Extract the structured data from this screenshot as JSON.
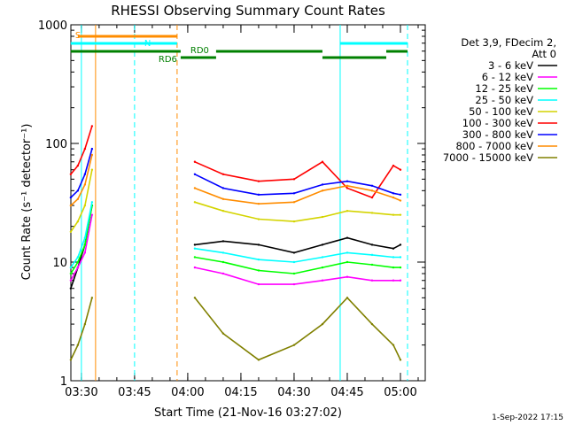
{
  "chart_data": {
    "type": "line",
    "title": "RHESSI Observing Summary Count Rates",
    "xlabel": "Start Time (21-Nov-16 03:27:02)",
    "ylabel": "Count Rate (s⁻¹ detector⁻¹)",
    "y_scale": "log",
    "xlim": [
      "03:27:02",
      "05:07:00"
    ],
    "ylim": [
      1,
      1000
    ],
    "x_tick_labels": [
      "03:30",
      "03:45",
      "04:00",
      "04:15",
      "04:30",
      "04:45",
      "05:00"
    ],
    "y_tick_labels": [
      "1",
      "10",
      "100",
      "1000"
    ],
    "legend_header": [
      "Det 3,9, FDecim 2,",
      "Att 0"
    ],
    "legend_position": "right",
    "series": [
      {
        "name": "3 - 6 keV",
        "color": "#000000",
        "x": [
          "03:27",
          "03:29",
          "03:31",
          "03:33",
          "04:02",
          "04:10",
          "04:20",
          "04:30",
          "04:38",
          "04:45",
          "04:52",
          "04:58",
          "05:00"
        ],
        "y": [
          6,
          9,
          14,
          30,
          14,
          15,
          14,
          12,
          14,
          16,
          14,
          13,
          14
        ]
      },
      {
        "name": "6 - 12 keV",
        "color": "#ff00ff",
        "x": [
          "03:27",
          "03:29",
          "03:31",
          "03:33",
          "04:02",
          "04:10",
          "04:20",
          "04:30",
          "04:38",
          "04:45",
          "04:52",
          "04:58",
          "05:00"
        ],
        "y": [
          7,
          9,
          12,
          25,
          9,
          8,
          6.5,
          6.5,
          7,
          7.5,
          7,
          7,
          7
        ]
      },
      {
        "name": "12 - 25 keV",
        "color": "#00ff00",
        "x": [
          "03:27",
          "03:29",
          "03:31",
          "03:33",
          "04:02",
          "04:10",
          "04:20",
          "04:30",
          "04:38",
          "04:45",
          "04:52",
          "04:58",
          "05:00"
        ],
        "y": [
          8,
          10,
          14,
          30,
          11,
          10,
          8.5,
          8,
          9,
          10,
          9.5,
          9,
          9
        ]
      },
      {
        "name": "25 - 50 keV",
        "color": "#00ffff",
        "x": [
          "03:27",
          "03:29",
          "03:31",
          "03:33",
          "04:02",
          "04:10",
          "04:20",
          "04:30",
          "04:38",
          "04:45",
          "04:52",
          "04:58",
          "05:00"
        ],
        "y": [
          9,
          11,
          16,
          32,
          13,
          12,
          10.5,
          10,
          11,
          12,
          11.5,
          11,
          11
        ]
      },
      {
        "name": "50 - 100 keV",
        "color": "#d4d400",
        "x": [
          "03:27",
          "03:29",
          "03:31",
          "03:33",
          "04:02",
          "04:10",
          "04:20",
          "04:30",
          "04:38",
          "04:45",
          "04:52",
          "04:58",
          "05:00"
        ],
        "y": [
          18,
          22,
          30,
          60,
          32,
          27,
          23,
          22,
          24,
          27,
          26,
          25,
          25
        ]
      },
      {
        "name": "100 - 300 keV",
        "color": "#ff0000",
        "x": [
          "03:27",
          "03:29",
          "03:31",
          "03:33",
          "04:02",
          "04:10",
          "04:20",
          "04:30",
          "04:38",
          "04:45",
          "04:52",
          "04:58",
          "05:00"
        ],
        "y": [
          55,
          65,
          90,
          140,
          70,
          55,
          48,
          50,
          70,
          42,
          35,
          65,
          60
        ]
      },
      {
        "name": "300 - 800 keV",
        "color": "#0000ff",
        "x": [
          "03:27",
          "03:29",
          "03:31",
          "03:33",
          "04:02",
          "04:10",
          "04:20",
          "04:30",
          "04:38",
          "04:45",
          "04:52",
          "04:58",
          "05:00"
        ],
        "y": [
          35,
          40,
          55,
          90,
          55,
          42,
          37,
          38,
          45,
          48,
          44,
          38,
          37
        ]
      },
      {
        "name": "800 - 7000 keV",
        "color": "#ff8c00",
        "x": [
          "03:27",
          "03:29",
          "03:31",
          "03:33",
          "04:02",
          "04:10",
          "04:20",
          "04:30",
          "04:38",
          "04:45",
          "04:52",
          "04:58",
          "05:00"
        ],
        "y": [
          30,
          34,
          45,
          80,
          42,
          34,
          31,
          32,
          40,
          44,
          40,
          35,
          33
        ]
      },
      {
        "name": "7000 - 15000 keV",
        "color": "#808000",
        "x": [
          "03:27",
          "03:29",
          "03:31",
          "03:33",
          "04:02",
          "04:10",
          "04:20",
          "04:30",
          "04:38",
          "04:45",
          "04:52",
          "04:58",
          "05:00"
        ],
        "y": [
          1.5,
          2,
          3,
          5,
          5,
          2.5,
          1.5,
          2,
          3,
          5,
          3,
          2,
          1.5
        ]
      }
    ],
    "vertical_lines": [
      {
        "time": "03:30",
        "color": "#00ffff",
        "style": "solid"
      },
      {
        "time": "03:34",
        "color": "#ff8c00",
        "style": "solid"
      },
      {
        "time": "03:45",
        "color": "#00ffff",
        "style": "dashed"
      },
      {
        "time": "03:57",
        "color": "#ff8c00",
        "style": "dashed"
      },
      {
        "time": "04:43",
        "color": "#00ffff",
        "style": "solid"
      },
      {
        "time": "05:02",
        "color": "#00ffff",
        "style": "dashed"
      }
    ],
    "flag_bars": [
      {
        "label": "S",
        "color": "#ff8c00",
        "segments": [
          [
            "03:29",
            "03:57"
          ]
        ]
      },
      {
        "label": "N",
        "color": "#00ffff",
        "segments": [
          [
            "03:27",
            "03:57"
          ],
          [
            "04:43",
            "05:02"
          ]
        ]
      },
      {
        "label": "RD0",
        "color": "#008000",
        "segments": [
          [
            "03:27",
            "03:58"
          ],
          [
            "04:08",
            "04:38"
          ],
          [
            "04:56",
            "05:02"
          ]
        ]
      },
      {
        "label": "RD6",
        "color": "#008000",
        "segments": [
          [
            "03:58",
            "04:08"
          ],
          [
            "04:38",
            "04:56"
          ]
        ]
      }
    ],
    "timestamp": "1-Sep-2022 17:15"
  }
}
